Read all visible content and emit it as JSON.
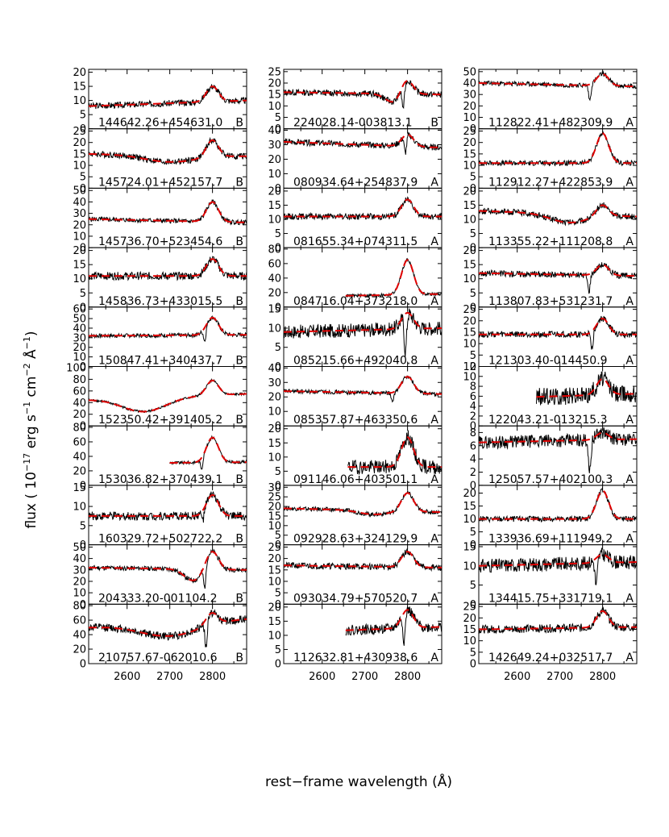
{
  "figure": {
    "ylabel": "flux ( 10$^{-17}$ erg s$^{-1}$ cm$^{-2}$ Å$^{-1}$)",
    "ylabel_parts": {
      "base": "flux ( 10",
      "e1": "−17",
      "mid1": " erg s",
      "e2": "−1",
      "mid2": " cm",
      "e3": "−2",
      "mid3": " Å",
      "e4": "−1",
      "end": ")"
    },
    "xlabel": "rest−frame wavelength (Å)",
    "xticks": [
      2600,
      2700,
      2800
    ],
    "xlim": [
      2510,
      2880
    ]
  },
  "colors": {
    "observed": "#000000",
    "model": "#e00000"
  },
  "chart_data": [
    {
      "type": "line",
      "panel": 1,
      "column": 1,
      "row": 1,
      "name": "144642.26+454631.0",
      "class": "B",
      "yticks": [
        0,
        5,
        10,
        15,
        20
      ],
      "ylim": [
        0,
        21
      ],
      "continuum": [
        8,
        10
      ],
      "peak": 15,
      "dip": null,
      "noise": 0.8,
      "xstart": 2510,
      "trough": null
    },
    {
      "type": "line",
      "panel": 2,
      "column": 1,
      "row": 2,
      "name": "145724.01+452157.7",
      "class": "B",
      "yticks": [
        0,
        5,
        10,
        15,
        20,
        25
      ],
      "ylim": [
        0,
        26
      ],
      "continuum": [
        15,
        14
      ],
      "peak": 21,
      "dip": null,
      "noise": 1.0,
      "xstart": 2510,
      "trough": {
        "center": 2700,
        "width": 70,
        "depth": 3
      }
    },
    {
      "type": "line",
      "panel": 3,
      "column": 1,
      "row": 3,
      "name": "145736.70+523454.6",
      "class": "B",
      "yticks": [
        0,
        10,
        20,
        30,
        40,
        50
      ],
      "ylim": [
        0,
        52
      ],
      "continuum": [
        25,
        22
      ],
      "peak": 40,
      "dip": null,
      "noise": 1.5,
      "xstart": 2510,
      "trough": null
    },
    {
      "type": "line",
      "panel": 4,
      "column": 1,
      "row": 4,
      "name": "145836.73+433015.5",
      "class": "B",
      "yticks": [
        0,
        5,
        10,
        15,
        20
      ],
      "ylim": [
        0,
        21
      ],
      "continuum": [
        11,
        11
      ],
      "peak": 17,
      "dip": null,
      "noise": 1.0,
      "xstart": 2510,
      "trough": null
    },
    {
      "type": "line",
      "panel": 5,
      "column": 1,
      "row": 5,
      "name": "150847.41+340437.7",
      "class": "B",
      "yticks": [
        0,
        10,
        20,
        30,
        40,
        50,
        60
      ],
      "ylim": [
        0,
        62
      ],
      "continuum": [
        32,
        33
      ],
      "peak": 51,
      "dip": {
        "at": 2782,
        "depth": 14
      },
      "noise": 1.5,
      "xstart": 2510,
      "trough": null
    },
    {
      "type": "line",
      "panel": 6,
      "column": 1,
      "row": 6,
      "name": "152350.42+391405.2",
      "class": "B",
      "yticks": [
        0,
        20,
        40,
        60,
        80,
        100
      ],
      "ylim": [
        0,
        102
      ],
      "continuum": [
        45,
        55
      ],
      "peak": 78,
      "dip": null,
      "noise": 1.5,
      "xstart": 2510,
      "trough": {
        "center": 2640,
        "width": 60,
        "depth": 24
      }
    },
    {
      "type": "line",
      "panel": 7,
      "column": 1,
      "row": 7,
      "name": "153036.82+370439.1",
      "class": "B",
      "yticks": [
        0,
        20,
        40,
        60,
        80
      ],
      "ylim": [
        0,
        82
      ],
      "continuum": [
        30,
        32
      ],
      "peak": 66,
      "dip": {
        "at": 2775,
        "depth": 15
      },
      "noise": 1.5,
      "xstart": 2700,
      "trough": null
    },
    {
      "type": "line",
      "panel": 8,
      "column": 1,
      "row": 8,
      "name": "160329.72+502722.2",
      "class": "B",
      "yticks": [
        0,
        5,
        10,
        15
      ],
      "ylim": [
        0,
        15.5
      ],
      "continuum": [
        7.5,
        7.5
      ],
      "peak": 13,
      "dip": {
        "at": 2778,
        "depth": 2.5
      },
      "noise": 0.8,
      "xstart": 2510,
      "trough": null
    },
    {
      "type": "line",
      "panel": 9,
      "column": 1,
      "row": 9,
      "name": "204333.20-001104.2",
      "class": "B",
      "yticks": [
        0,
        10,
        20,
        30,
        40,
        50
      ],
      "ylim": [
        0,
        52
      ],
      "continuum": [
        32,
        30
      ],
      "peak": 46,
      "dip": {
        "at": 2782,
        "depth": 20
      },
      "noise": 1.5,
      "xstart": 2510,
      "trough": {
        "center": 2755,
        "width": 25,
        "depth": 10
      }
    },
    {
      "type": "line",
      "panel": 10,
      "column": 1,
      "row": 10,
      "name": "210757.67-062010.6",
      "class": "B",
      "yticks": [
        0,
        20,
        40,
        60,
        80
      ],
      "ylim": [
        0,
        82
      ],
      "continuum": [
        50,
        62
      ],
      "peak": 70,
      "dip": {
        "at": 2785,
        "depth": 40
      },
      "noise": 4,
      "xstart": 2510,
      "trough": {
        "center": 2700,
        "width": 80,
        "depth": 18
      }
    },
    {
      "type": "line",
      "panel": 11,
      "column": 2,
      "row": 1,
      "name": "224028.14-003813.1",
      "class": "B",
      "yticks": [
        0,
        5,
        10,
        15,
        20,
        25
      ],
      "ylim": [
        0,
        26
      ],
      "continuum": [
        16,
        15
      ],
      "peak": 21,
      "dip": {
        "at": 2790,
        "depth": 10
      },
      "noise": 1.0,
      "xstart": 2510,
      "trough": {
        "center": 2770,
        "width": 25,
        "depth": 4
      }
    },
    {
      "type": "line",
      "panel": 12,
      "column": 2,
      "row": 2,
      "name": "080934.64+254837.9",
      "class": "A",
      "yticks": [
        0,
        10,
        20,
        30,
        40
      ],
      "ylim": [
        0,
        41
      ],
      "continuum": [
        32,
        28
      ],
      "peak": 37,
      "dip": {
        "at": 2795,
        "depth": 12
      },
      "noise": 1.5,
      "xstart": 2510,
      "trough": null
    },
    {
      "type": "line",
      "panel": 13,
      "column": 2,
      "row": 3,
      "name": "081655.34+074311.5",
      "class": "A",
      "yticks": [
        0,
        5,
        10,
        15,
        20
      ],
      "ylim": [
        0,
        21
      ],
      "continuum": [
        11,
        11
      ],
      "peak": 17,
      "dip": null,
      "noise": 0.8,
      "xstart": 2510,
      "trough": null
    },
    {
      "type": "line",
      "panel": 14,
      "column": 2,
      "row": 4,
      "name": "084716.04+373218.0",
      "class": "A",
      "yticks": [
        0,
        20,
        40,
        60,
        80
      ],
      "ylim": [
        0,
        82
      ],
      "continuum": [
        14,
        18
      ],
      "peak": 65,
      "dip": null,
      "noise": 1.5,
      "xstart": 2655,
      "trough": null
    },
    {
      "type": "line",
      "panel": 15,
      "column": 2,
      "row": 5,
      "name": "085215.66+492040.8",
      "class": "A",
      "yticks": [
        0,
        5,
        10,
        15
      ],
      "ylim": [
        0,
        15.5
      ],
      "continuum": [
        9,
        10
      ],
      "peak": 14,
      "dip": {
        "at": 2795,
        "depth": 10
      },
      "noise": 1.3,
      "xstart": 2510,
      "trough": null
    },
    {
      "type": "line",
      "panel": 16,
      "column": 2,
      "row": 6,
      "name": "085357.87+463350.6",
      "class": "A",
      "yticks": [
        0,
        10,
        20,
        30,
        40
      ],
      "ylim": [
        0,
        41
      ],
      "continuum": [
        24,
        22
      ],
      "peak": 34,
      "dip": {
        "at": 2765,
        "depth": 7
      },
      "noise": 1.0,
      "xstart": 2510,
      "trough": null
    },
    {
      "type": "line",
      "panel": 17,
      "column": 2,
      "row": 7,
      "name": "091146.06+403501.1",
      "class": "A",
      "yticks": [
        0,
        5,
        10,
        15,
        20
      ],
      "ylim": [
        0,
        21
      ],
      "continuum": [
        6.5,
        6.5
      ],
      "peak": 17,
      "dip": null,
      "noise": 1.8,
      "xstart": 2660,
      "trough": null
    },
    {
      "type": "line",
      "panel": 18,
      "column": 2,
      "row": 8,
      "name": "092928.63+324129.9",
      "class": "A",
      "yticks": [
        0,
        5,
        10,
        15,
        20,
        25,
        30
      ],
      "ylim": [
        0,
        31
      ],
      "continuum": [
        19,
        17
      ],
      "peak": 27,
      "dip": null,
      "noise": 0.8,
      "xstart": 2510,
      "trough": {
        "center": 2720,
        "width": 40,
        "depth": 2
      }
    },
    {
      "type": "line",
      "panel": 19,
      "column": 2,
      "row": 9,
      "name": "093034.79+570520.7",
      "class": "A",
      "yticks": [
        0,
        5,
        10,
        15,
        20,
        25
      ],
      "ylim": [
        0,
        26
      ],
      "continuum": [
        17,
        16
      ],
      "peak": 23,
      "dip": null,
      "noise": 1.0,
      "xstart": 2510,
      "trough": null
    },
    {
      "type": "line",
      "panel": 20,
      "column": 2,
      "row": 10,
      "name": "112632.81+430938.6",
      "class": "A",
      "yticks": [
        0,
        5,
        10,
        15,
        20
      ],
      "ylim": [
        0,
        21
      ],
      "continuum": [
        11,
        13
      ],
      "peak": 19,
      "dip": {
        "at": 2792,
        "depth": 10
      },
      "noise": 1.3,
      "xstart": 2655,
      "trough": null
    },
    {
      "type": "line",
      "panel": 21,
      "column": 3,
      "row": 1,
      "name": "112822.41+482309.9",
      "class": "A",
      "yticks": [
        0,
        10,
        20,
        30,
        40,
        50
      ],
      "ylim": [
        0,
        52
      ],
      "continuum": [
        40,
        37
      ],
      "peak": 48,
      "dip": {
        "at": 2770,
        "depth": 14
      },
      "noise": 1.5,
      "xstart": 2510,
      "trough": null
    },
    {
      "type": "line",
      "panel": 22,
      "column": 3,
      "row": 2,
      "name": "112912.27+422853.9",
      "class": "A",
      "yticks": [
        0,
        5,
        10,
        15,
        20,
        25
      ],
      "ylim": [
        0,
        26
      ],
      "continuum": [
        11,
        11
      ],
      "peak": 24,
      "dip": null,
      "noise": 0.8,
      "xstart": 2510,
      "trough": null
    },
    {
      "type": "line",
      "panel": 23,
      "column": 3,
      "row": 3,
      "name": "113355.22+111208.8",
      "class": "A",
      "yticks": [
        0,
        5,
        10,
        15,
        20
      ],
      "ylim": [
        0,
        21
      ],
      "continuum": [
        13,
        11
      ],
      "peak": 15,
      "dip": null,
      "noise": 0.8,
      "xstart": 2510,
      "trough": {
        "center": 2720,
        "width": 50,
        "depth": 3
      }
    },
    {
      "type": "line",
      "panel": 24,
      "column": 3,
      "row": 4,
      "name": "113807.83+531231.7",
      "class": "A",
      "yticks": [
        0,
        5,
        10,
        15,
        20
      ],
      "ylim": [
        0,
        21
      ],
      "continuum": [
        12,
        11
      ],
      "peak": 15,
      "dip": {
        "at": 2768,
        "depth": 6
      },
      "noise": 0.8,
      "xstart": 2510,
      "trough": null
    },
    {
      "type": "line",
      "panel": 25,
      "column": 3,
      "row": 5,
      "name": "121303.40-014450.9",
      "class": "A",
      "yticks": [
        0,
        5,
        10,
        15,
        20,
        25
      ],
      "ylim": [
        0,
        26
      ],
      "continuum": [
        14,
        14
      ],
      "peak": 21,
      "dip": {
        "at": 2775,
        "depth": 8
      },
      "noise": 1.0,
      "xstart": 2510,
      "trough": null
    },
    {
      "type": "line",
      "panel": 26,
      "column": 3,
      "row": 6,
      "name": "122043.21-013215.3",
      "class": "A",
      "yticks": [
        0,
        2,
        4,
        6,
        8,
        10,
        12
      ],
      "ylim": [
        0,
        12
      ],
      "continuum": [
        5.5,
        6.5
      ],
      "peak": 9.5,
      "dip": null,
      "noise": 1.3,
      "xstart": 2645,
      "trough": null
    },
    {
      "type": "line",
      "panel": 27,
      "column": 3,
      "row": 7,
      "name": "125057.57+402100.3",
      "class": "A",
      "yticks": [
        0,
        2,
        4,
        6,
        8
      ],
      "ylim": [
        0,
        9
      ],
      "continuum": [
        6.5,
        7
      ],
      "peak": 8,
      "dip": {
        "at": 2770,
        "depth": 5
      },
      "noise": 0.7,
      "xstart": 2510,
      "trough": null
    },
    {
      "type": "line",
      "panel": 28,
      "column": 3,
      "row": 8,
      "name": "133936.69+111949.2",
      "class": "A",
      "yticks": [
        0,
        5,
        10,
        15,
        20
      ],
      "ylim": [
        0,
        23
      ],
      "continuum": [
        10,
        10
      ],
      "peak": 21,
      "dip": null,
      "noise": 0.8,
      "xstart": 2510,
      "trough": null
    },
    {
      "type": "line",
      "panel": 29,
      "column": 3,
      "row": 9,
      "name": "134415.75+331719.1",
      "class": "A",
      "yticks": [
        0,
        5,
        10,
        15
      ],
      "ylim": [
        0,
        15.5
      ],
      "continuum": [
        10,
        11
      ],
      "peak": 13,
      "dip": {
        "at": 2785,
        "depth": 7
      },
      "noise": 1.3,
      "xstart": 2510,
      "trough": null
    },
    {
      "type": "line",
      "panel": 30,
      "column": 3,
      "row": 10,
      "name": "142649.24+032517.7",
      "class": "A",
      "yticks": [
        0,
        5,
        10,
        15,
        20,
        25
      ],
      "ylim": [
        0,
        26
      ],
      "continuum": [
        15,
        16
      ],
      "peak": 23,
      "dip": null,
      "noise": 1.3,
      "xstart": 2510,
      "trough": null
    }
  ]
}
